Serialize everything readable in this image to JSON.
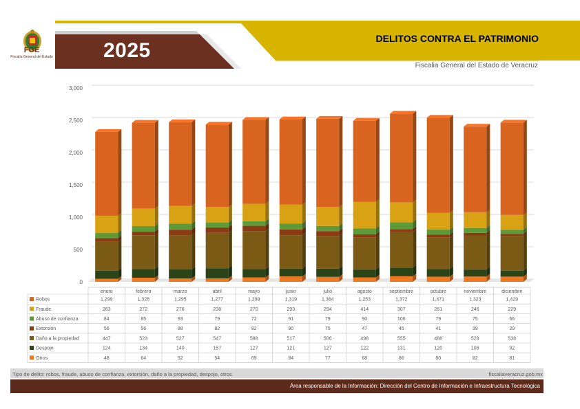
{
  "header": {
    "year": "2025",
    "title": "DELITOS CONTRA EL PATRIMONIO",
    "subtitle": "Fiscalia General del Estado de Veracruz",
    "logo_text": "FGE",
    "logo_subtext": "Fiscalía General del Estado"
  },
  "footer": {
    "note": "Tipo de delito: robos, fraude, abuso de confianza, extorsión, daño a la propiedad, despojo,  otros.",
    "website": "fiscaliaveracruz.gob.mx",
    "responsible": "Área responsable de la Información: Dirección del Centro de Información e Infraestructura Tecnológica"
  },
  "colors": {
    "header_gold": "#d6b400",
    "header_brown": "#6b3020",
    "footer_gray": "#d9d9d9",
    "footer_brown": "#5c2a1a"
  },
  "chart_data": {
    "type": "bar",
    "stacked": true,
    "three_d": true,
    "ylim": [
      0,
      3000
    ],
    "yticks": [
      "0",
      "500",
      "1,000",
      "1,500",
      "2,000",
      "2,500",
      "3,000"
    ],
    "grid": true,
    "legend": "data-table",
    "categories": [
      "enero",
      "febrero",
      "marzo",
      "abril",
      "mayo",
      "junio",
      "julio",
      "agosto",
      "septiembre",
      "octubre",
      "noviembre",
      "diciembre"
    ],
    "series": [
      {
        "name": "Robos",
        "color": "#d86420",
        "values": [
          1299,
          1328,
          1295,
          1277,
          1299,
          1319,
          1364,
          1253,
          1372,
          1471,
          1323,
          1429
        ],
        "labels": [
          "1,299",
          "1,328",
          "1,295",
          "1,277",
          "1,299",
          "1,319",
          "1,364",
          "1,253",
          "1,372",
          "1,471",
          "1,323",
          "1,429"
        ]
      },
      {
        "name": "Fraude",
        "color": "#d8a214",
        "values": [
          263,
          272,
          276,
          238,
          270,
          293,
          294,
          414,
          307,
          261,
          246,
          229
        ],
        "labels": [
          "263",
          "272",
          "276",
          "238",
          "270",
          "293",
          "294",
          "414",
          "307",
          "261",
          "246",
          "229"
        ]
      },
      {
        "name": "Abuso de confianza",
        "color": "#5e9a38",
        "values": [
          84,
          85,
          93,
          79,
          72,
          91,
          79,
          90,
          106,
          79,
          75,
          66
        ],
        "labels": [
          "84",
          "85",
          "93",
          "79",
          "72",
          "91",
          "79",
          "90",
          "106",
          "79",
          "75",
          "66"
        ]
      },
      {
        "name": "Extorsión",
        "color": "#8b3a12",
        "values": [
          56,
          56,
          88,
          82,
          82,
          90,
          75,
          47,
          45,
          41,
          39,
          29
        ],
        "labels": [
          "56",
          "56",
          "88",
          "82",
          "82",
          "90",
          "75",
          "47",
          "45",
          "41",
          "39",
          "29"
        ]
      },
      {
        "name": "Daño a la propiedad",
        "color": "#7a5a14",
        "values": [
          447,
          523,
          527,
          547,
          588,
          517,
          506,
          498,
          555,
          488,
          528,
          538
        ],
        "labels": [
          "447",
          "523",
          "527",
          "547",
          "588",
          "517",
          "506",
          "498",
          "555",
          "488",
          "528",
          "538"
        ]
      },
      {
        "name": "Despojo",
        "color": "#2a4418",
        "values": [
          124,
          134,
          140,
          157,
          127,
          121,
          127,
          122,
          131,
          120,
          108,
          92
        ],
        "labels": [
          "124",
          "134",
          "140",
          "157",
          "127",
          "121",
          "127",
          "122",
          "131",
          "120",
          "108",
          "92"
        ]
      },
      {
        "name": "Otros",
        "color": "#f07820",
        "values": [
          48,
          64,
          52,
          54,
          69,
          84,
          77,
          68,
          86,
          80,
          82,
          81
        ],
        "labels": [
          "48",
          "64",
          "52",
          "54",
          "69",
          "84",
          "77",
          "68",
          "86",
          "80",
          "82",
          "81"
        ]
      }
    ]
  }
}
